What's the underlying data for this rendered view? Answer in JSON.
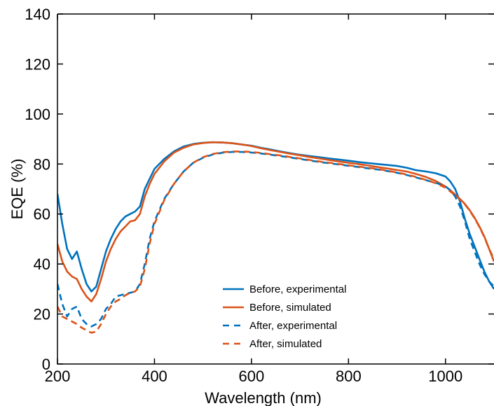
{
  "chart_data": {
    "type": "line",
    "title": "",
    "xlabel": "Wavelength (nm)",
    "ylabel": "EQE (%)",
    "xlim": [
      200,
      1100
    ],
    "ylim": [
      0,
      140
    ],
    "xticks": [
      200,
      400,
      600,
      800,
      1000
    ],
    "yticks": [
      0,
      20,
      40,
      60,
      80,
      100,
      120,
      140
    ],
    "xtick_labels": [
      "200",
      "400",
      "600",
      "800",
      "1000"
    ],
    "ytick_labels": [
      "0",
      "20",
      "40",
      "60",
      "80",
      "100",
      "120",
      "140"
    ],
    "grid": false,
    "legend_position": "bottom-center",
    "series": [
      {
        "name": "Before, experimental",
        "color": "#0072BD",
        "style": "solid",
        "x": [
          200,
          210,
          220,
          230,
          240,
          250,
          260,
          270,
          280,
          290,
          300,
          310,
          320,
          330,
          340,
          350,
          360,
          370,
          380,
          390,
          400,
          420,
          440,
          460,
          480,
          500,
          520,
          540,
          560,
          580,
          600,
          620,
          640,
          660,
          680,
          700,
          720,
          740,
          760,
          780,
          800,
          820,
          840,
          860,
          880,
          900,
          920,
          940,
          960,
          980,
          1000,
          1010,
          1020,
          1030,
          1040,
          1050,
          1060,
          1070,
          1080,
          1090,
          1100
        ],
        "y": [
          68,
          56,
          46,
          42,
          45,
          38,
          32,
          29,
          31,
          38,
          45,
          50,
          54,
          57,
          59,
          60,
          61,
          63,
          70,
          74,
          78,
          82,
          85,
          87,
          88,
          88.5,
          88.7,
          88.6,
          88.3,
          87.8,
          87.3,
          86.5,
          85.8,
          85,
          84.3,
          83.7,
          83.2,
          82.7,
          82.2,
          81.8,
          81.3,
          80.8,
          80.4,
          80,
          79.6,
          79.2,
          78.5,
          77.5,
          77,
          76.3,
          75,
          73,
          70,
          65,
          58,
          52,
          47,
          42,
          37,
          33,
          30
        ]
      },
      {
        "name": "Before, simulated",
        "color": "#D95319",
        "style": "solid",
        "x": [
          200,
          210,
          220,
          230,
          240,
          250,
          260,
          270,
          280,
          290,
          300,
          310,
          320,
          330,
          340,
          350,
          360,
          370,
          380,
          390,
          400,
          420,
          440,
          460,
          480,
          500,
          520,
          540,
          560,
          580,
          600,
          620,
          640,
          660,
          680,
          700,
          720,
          740,
          760,
          780,
          800,
          820,
          840,
          860,
          880,
          900,
          920,
          940,
          960,
          980,
          1000,
          1010,
          1020,
          1030,
          1040,
          1050,
          1060,
          1070,
          1080,
          1090,
          1100
        ],
        "y": [
          48,
          41,
          37,
          35,
          34,
          30,
          27,
          25,
          28,
          34,
          41,
          46,
          50,
          53,
          55,
          57,
          57.5,
          60,
          67,
          72,
          76,
          81,
          84.5,
          86.5,
          87.8,
          88.4,
          88.7,
          88.6,
          88.3,
          87.8,
          87.2,
          86.3,
          85.5,
          84.8,
          84.1,
          83.5,
          82.8,
          82.2,
          81.6,
          81,
          80.5,
          80,
          79.4,
          78.8,
          78.2,
          77.6,
          77,
          76,
          74.8,
          73.2,
          71,
          69.5,
          67.8,
          66,
          64,
          61.5,
          58.5,
          55,
          51,
          46,
          41
        ]
      },
      {
        "name": "After, experimental",
        "color": "#0072BD",
        "style": "dashed",
        "x": [
          200,
          210,
          220,
          230,
          240,
          250,
          260,
          270,
          280,
          290,
          300,
          310,
          320,
          330,
          340,
          350,
          360,
          370,
          380,
          390,
          400,
          420,
          440,
          460,
          480,
          500,
          520,
          540,
          560,
          580,
          600,
          620,
          640,
          660,
          680,
          700,
          720,
          740,
          760,
          780,
          800,
          820,
          840,
          860,
          880,
          900,
          920,
          940,
          960,
          980,
          1000,
          1010,
          1020,
          1030,
          1040,
          1050,
          1060,
          1070,
          1080,
          1090,
          1100
        ],
        "y": [
          32,
          24,
          19,
          22,
          23,
          18,
          16,
          15,
          16,
          18,
          22,
          24,
          27,
          27.5,
          28,
          28.5,
          29,
          32,
          40,
          50,
          57,
          66,
          72,
          77,
          80.5,
          82.5,
          83.8,
          84.5,
          84.8,
          84.8,
          84.6,
          84.2,
          83.7,
          83.2,
          82.6,
          82,
          81.4,
          80.8,
          80.3,
          79.8,
          79.3,
          78.8,
          78.3,
          77.8,
          77.2,
          76.5,
          75.6,
          74.6,
          73.5,
          72.5,
          71,
          69.5,
          67,
          63,
          57,
          50,
          45,
          40,
          36,
          33,
          31
        ]
      },
      {
        "name": "After, simulated",
        "color": "#D95319",
        "style": "dashed",
        "x": [
          200,
          210,
          220,
          230,
          240,
          250,
          260,
          270,
          280,
          290,
          300,
          310,
          320,
          330,
          340,
          350,
          360,
          370,
          380,
          390,
          400,
          420,
          440,
          460,
          480,
          500,
          520,
          540,
          560,
          580,
          600,
          620,
          640,
          660,
          680,
          700,
          720,
          740,
          760,
          780,
          800,
          820,
          840,
          860,
          880,
          900,
          920,
          940,
          960,
          980,
          1000,
          1010,
          1020,
          1030,
          1040,
          1050,
          1060,
          1070,
          1080,
          1090,
          1100
        ],
        "y": [
          23,
          19,
          18,
          17,
          16,
          14.5,
          13.5,
          12.5,
          13,
          16,
          20,
          23,
          25,
          26,
          27.5,
          28.5,
          29,
          31,
          38,
          48,
          56,
          65.5,
          72,
          77,
          80.5,
          82.7,
          84,
          84.7,
          85,
          85,
          84.8,
          84.4,
          83.9,
          83.4,
          82.8,
          82.2,
          81.6,
          81,
          80.5,
          80,
          79.5,
          79,
          78.5,
          78,
          77.3,
          76.6,
          75.8,
          74.8,
          73.6,
          72.3,
          70.5,
          69,
          67.5,
          65.8,
          63.8,
          61.3,
          58.3,
          54.8,
          50.8,
          46,
          42
        ]
      }
    ]
  }
}
